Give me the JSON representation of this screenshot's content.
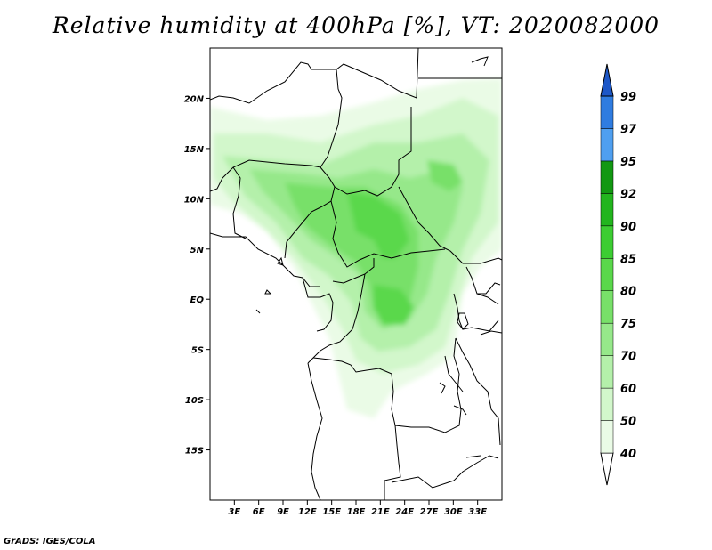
{
  "title": "Relative humidity at 400hPa [%], VT: 2020082000",
  "credit": "GrADS: IGES/COLA",
  "map": {
    "lon_range": [
      0,
      36
    ],
    "lat_range": [
      -20,
      25
    ],
    "lat_ticks": [
      {
        "value": 20,
        "label": "20N"
      },
      {
        "value": 15,
        "label": "15N"
      },
      {
        "value": 10,
        "label": "10N"
      },
      {
        "value": 5,
        "label": "5N"
      },
      {
        "value": 0,
        "label": "EQ"
      },
      {
        "value": -5,
        "label": "5S"
      },
      {
        "value": -10,
        "label": "10S"
      },
      {
        "value": -15,
        "label": "15S"
      }
    ],
    "lon_ticks": [
      {
        "value": 3,
        "label": "3E"
      },
      {
        "value": 6,
        "label": "6E"
      },
      {
        "value": 9,
        "label": "9E"
      },
      {
        "value": 12,
        "label": "12E"
      },
      {
        "value": 15,
        "label": "15E"
      },
      {
        "value": 18,
        "label": "18E"
      },
      {
        "value": 21,
        "label": "21E"
      },
      {
        "value": 24,
        "label": "24E"
      },
      {
        "value": 27,
        "label": "27E"
      },
      {
        "value": 30,
        "label": "30E"
      },
      {
        "value": 33,
        "label": "33E"
      }
    ]
  },
  "colorbar": {
    "levels": [
      "40",
      "50",
      "60",
      "70",
      "75",
      "80",
      "85",
      "90",
      "92",
      "95",
      "97",
      "99"
    ],
    "colors": [
      "#ffffff",
      "#eafbe6",
      "#d2f7cb",
      "#b4f0aa",
      "#96e88a",
      "#78e069",
      "#5ad84b",
      "#3ccd32",
      "#22b51e",
      "#129812",
      "#4f9ff0",
      "#2f7ce0",
      "#1d57c7"
    ]
  },
  "colors": {
    "land_fill": "#ffffff",
    "border": "#000000"
  }
}
